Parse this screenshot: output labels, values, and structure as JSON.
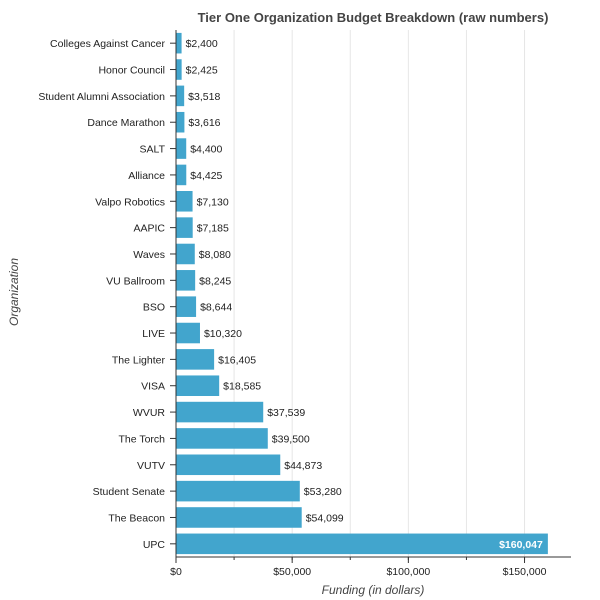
{
  "chart_data": {
    "type": "bar",
    "orientation": "horizontal",
    "title": "Tier One Organization Budget Breakdown (raw numbers)",
    "xlabel": "Funding (in dollars)",
    "ylabel": "Organization",
    "xlim": [
      0,
      170000
    ],
    "x_ticks": [
      0,
      50000,
      100000,
      150000
    ],
    "x_tick_labels": [
      "$0",
      "$50,000",
      "$100,000",
      "$150,000"
    ],
    "grid": true,
    "bar_color": "#42a5cd",
    "categories": [
      "Colleges Against Cancer",
      "Honor Council",
      "Student Alumni Association",
      "Dance Marathon",
      "SALT",
      "Alliance",
      "Valpo Robotics",
      "AAPIC",
      "Waves",
      "VU Ballroom",
      "BSO",
      "LIVE",
      "The Lighter",
      "VISA",
      "WVUR",
      "The Torch",
      "VUTV",
      "Student Senate",
      "The Beacon",
      "UPC"
    ],
    "values": [
      2400,
      2425,
      3518,
      3616,
      4400,
      4425,
      7130,
      7185,
      8080,
      8245,
      8644,
      10320,
      16405,
      18585,
      37539,
      39500,
      44873,
      53280,
      54099,
      160047
    ],
    "data_labels": [
      "$2,400",
      "$2,425",
      "$3,518",
      "$3,616",
      "$4,400",
      "$4,425",
      "$7,130",
      "$7,185",
      "$8,080",
      "$8,245",
      "$8,644",
      "$10,320",
      "$16,405",
      "$18,585",
      "$37,539",
      "$39,500",
      "$44,873",
      "$53,280",
      "$54,099",
      "$160,047"
    ]
  }
}
